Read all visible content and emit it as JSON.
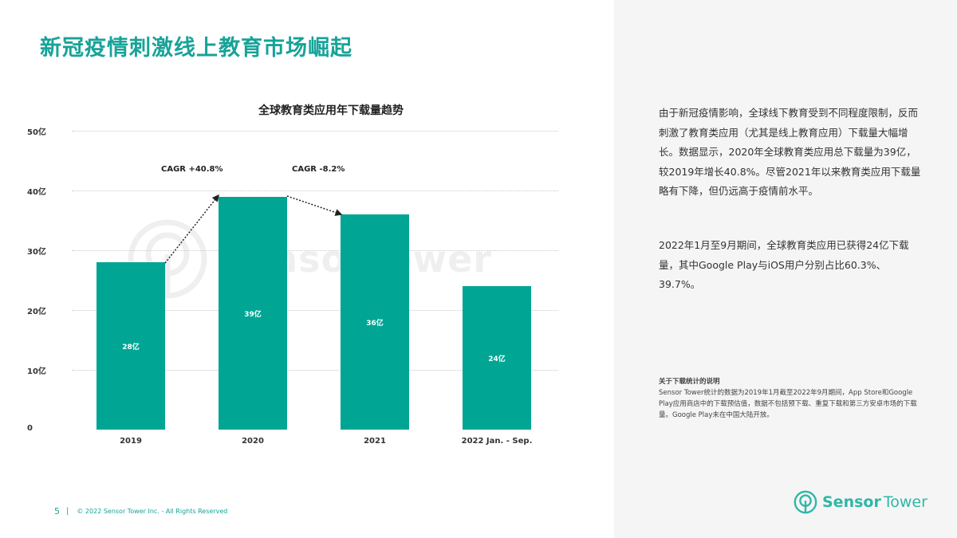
{
  "page": {
    "title": "新冠疫情刺激线上教育市场崛起",
    "page_number": "5",
    "footer_separator": "|",
    "copyright": "© 2022 Sensor Tower Inc. - All Rights Reserved"
  },
  "colors": {
    "accent": "#17a398",
    "bar": "#00a594",
    "panel_bg": "#f5f5f5"
  },
  "chart_data": {
    "type": "bar",
    "title": "全球教育类应用年下载量趋势",
    "categories": [
      "2019",
      "2020",
      "2021",
      "2022 Jan. - Sep."
    ],
    "values": [
      28,
      39,
      36,
      24
    ],
    "value_labels": [
      "28亿",
      "39亿",
      "36亿",
      "24亿"
    ],
    "unit": "亿",
    "xlabel": "",
    "ylabel": "",
    "ylim": [
      0,
      50
    ],
    "yticks": [
      "0",
      "10亿",
      "20亿",
      "30亿",
      "40亿",
      "50亿"
    ],
    "grid": true,
    "annotations": [
      {
        "text": "CAGR +40.8%",
        "from": "2019",
        "to": "2020"
      },
      {
        "text": "CAGR -8.2%",
        "from": "2020",
        "to": "2021"
      }
    ]
  },
  "watermark": {
    "text": "SensorTower"
  },
  "sidebar": {
    "paragraph1": "由于新冠疫情影响，全球线下教育受到不同程度限制，反而刺激了教育类应用（尤其是线上教育应用）下载量大幅增长。数据显示，2020年全球教育类应用总下载量为39亿，较2019年增长40.8%。尽管2021年以来教育类应用下载量略有下降，但仍远高于疫情前水平。",
    "paragraph2": "2022年1月至9月期间，全球教育类应用已获得24亿下载量，其中Google Play与iOS用户分别占比60.3%、39.7%。",
    "note_title": "关于下载统计的说明",
    "note_body": "Sensor Tower统计的数据为2019年1月截至2022年9月期间，App Store和Google Play应用商店中的下载预估值，数据不包括预下载、重复下载和第三方安卓市场的下载量。Google Play未在中国大陆开放。"
  },
  "logo": {
    "part1": "Sensor",
    "part2": "Tower"
  }
}
